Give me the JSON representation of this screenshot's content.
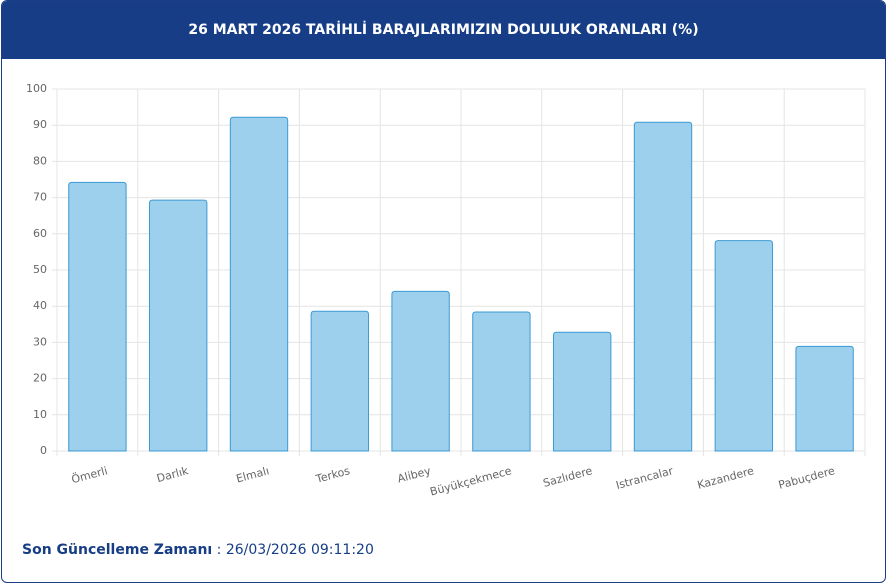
{
  "chart_data": {
    "type": "bar",
    "title": "26 MART 2026 TARİHLİ BARAJLARIMIZIN DOLULUK ORANLARI (%)",
    "categories": [
      "Ömerli",
      "Darlık",
      "Elmalı",
      "Terkos",
      "Alibey",
      "Büyükçekmece",
      "Sazlıdere",
      "Istrancalar",
      "Kazandere",
      "Pabuçdere"
    ],
    "values": [
      74.2,
      69.3,
      92.2,
      38.6,
      44.1,
      38.4,
      32.8,
      90.8,
      58.1,
      28.9
    ],
    "color": "#9dd0ec",
    "border_color": "#3c9ad3",
    "ylim": [
      0,
      100
    ],
    "yticks": [
      0,
      10,
      20,
      30,
      40,
      50,
      60,
      70,
      80,
      90,
      100
    ],
    "grid": true
  },
  "footer": {
    "label": "Son Güncelleme Zamanı",
    "separator": ":",
    "timestamp": "26/03/2026 09:11:20"
  }
}
